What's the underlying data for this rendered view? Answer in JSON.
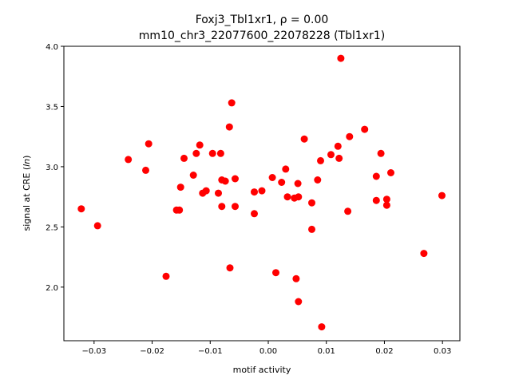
{
  "chart_data": {
    "type": "scatter",
    "title_line1": "Foxj3_Tbl1xr1, ρ = 0.00",
    "title_line2": "mm10_chr3_22077600_22078228 (Tbl1xr1)",
    "xlabel": "motif activity",
    "ylabel_prefix": "signal at CRE (",
    "ylabel_italic": "ln",
    "ylabel_suffix": ")",
    "xlim": [
      -0.0352,
      0.033
    ],
    "ylim": [
      1.555,
      4.0
    ],
    "xticks": [
      -0.03,
      -0.02,
      -0.01,
      0.0,
      0.01,
      0.02,
      0.03
    ],
    "xtick_labels": [
      "−0.03",
      "−0.02",
      "−0.01",
      "0.00",
      "0.01",
      "0.02",
      "0.03"
    ],
    "yticks": [
      2.0,
      2.5,
      3.0,
      3.5,
      4.0
    ],
    "ytick_labels": [
      "2.0",
      "2.5",
      "3.0",
      "3.5",
      "4.0"
    ],
    "marker_color": "#ff0000",
    "grid": false,
    "legend": "none",
    "points": [
      {
        "x": -0.0322,
        "y": 2.65
      },
      {
        "x": -0.0294,
        "y": 2.51
      },
      {
        "x": -0.0241,
        "y": 3.06
      },
      {
        "x": -0.0211,
        "y": 2.97
      },
      {
        "x": -0.0206,
        "y": 3.19
      },
      {
        "x": -0.0176,
        "y": 2.09
      },
      {
        "x": -0.0158,
        "y": 2.64
      },
      {
        "x": -0.0153,
        "y": 2.64
      },
      {
        "x": -0.0151,
        "y": 2.83
      },
      {
        "x": -0.0145,
        "y": 3.07
      },
      {
        "x": -0.0129,
        "y": 2.93
      },
      {
        "x": -0.0124,
        "y": 3.11
      },
      {
        "x": -0.0118,
        "y": 3.18
      },
      {
        "x": -0.0113,
        "y": 2.78
      },
      {
        "x": -0.0107,
        "y": 2.8
      },
      {
        "x": -0.0096,
        "y": 3.11
      },
      {
        "x": -0.0086,
        "y": 2.78
      },
      {
        "x": -0.0082,
        "y": 3.11
      },
      {
        "x": -0.008,
        "y": 2.89
      },
      {
        "x": -0.008,
        "y": 2.67
      },
      {
        "x": -0.0074,
        "y": 2.88
      },
      {
        "x": -0.0067,
        "y": 3.33
      },
      {
        "x": -0.0066,
        "y": 2.16
      },
      {
        "x": -0.0063,
        "y": 3.53
      },
      {
        "x": -0.0057,
        "y": 2.9
      },
      {
        "x": -0.0057,
        "y": 2.67
      },
      {
        "x": -0.0024,
        "y": 2.79
      },
      {
        "x": -0.0024,
        "y": 2.61
      },
      {
        "x": -0.0011,
        "y": 2.8
      },
      {
        "x": 0.0007,
        "y": 2.91
      },
      {
        "x": 0.0013,
        "y": 2.12
      },
      {
        "x": 0.0023,
        "y": 2.87
      },
      {
        "x": 0.003,
        "y": 2.98
      },
      {
        "x": 0.0033,
        "y": 2.75
      },
      {
        "x": 0.0045,
        "y": 2.74
      },
      {
        "x": 0.0048,
        "y": 2.07
      },
      {
        "x": 0.0051,
        "y": 2.86
      },
      {
        "x": 0.0052,
        "y": 2.75
      },
      {
        "x": 0.0052,
        "y": 1.88
      },
      {
        "x": 0.0062,
        "y": 3.23
      },
      {
        "x": 0.0075,
        "y": 2.7
      },
      {
        "x": 0.0075,
        "y": 2.48
      },
      {
        "x": 0.0085,
        "y": 2.89
      },
      {
        "x": 0.009,
        "y": 3.05
      },
      {
        "x": 0.0092,
        "y": 1.67
      },
      {
        "x": 0.0108,
        "y": 3.1
      },
      {
        "x": 0.012,
        "y": 3.17
      },
      {
        "x": 0.0122,
        "y": 3.07
      },
      {
        "x": 0.0125,
        "y": 3.9
      },
      {
        "x": 0.0137,
        "y": 2.63
      },
      {
        "x": 0.014,
        "y": 3.25
      },
      {
        "x": 0.0166,
        "y": 3.31
      },
      {
        "x": 0.0186,
        "y": 2.92
      },
      {
        "x": 0.0186,
        "y": 2.72
      },
      {
        "x": 0.0194,
        "y": 3.11
      },
      {
        "x": 0.0204,
        "y": 2.73
      },
      {
        "x": 0.0204,
        "y": 2.68
      },
      {
        "x": 0.0211,
        "y": 2.95
      },
      {
        "x": 0.0268,
        "y": 2.28
      },
      {
        "x": 0.0299,
        "y": 2.76
      }
    ]
  }
}
